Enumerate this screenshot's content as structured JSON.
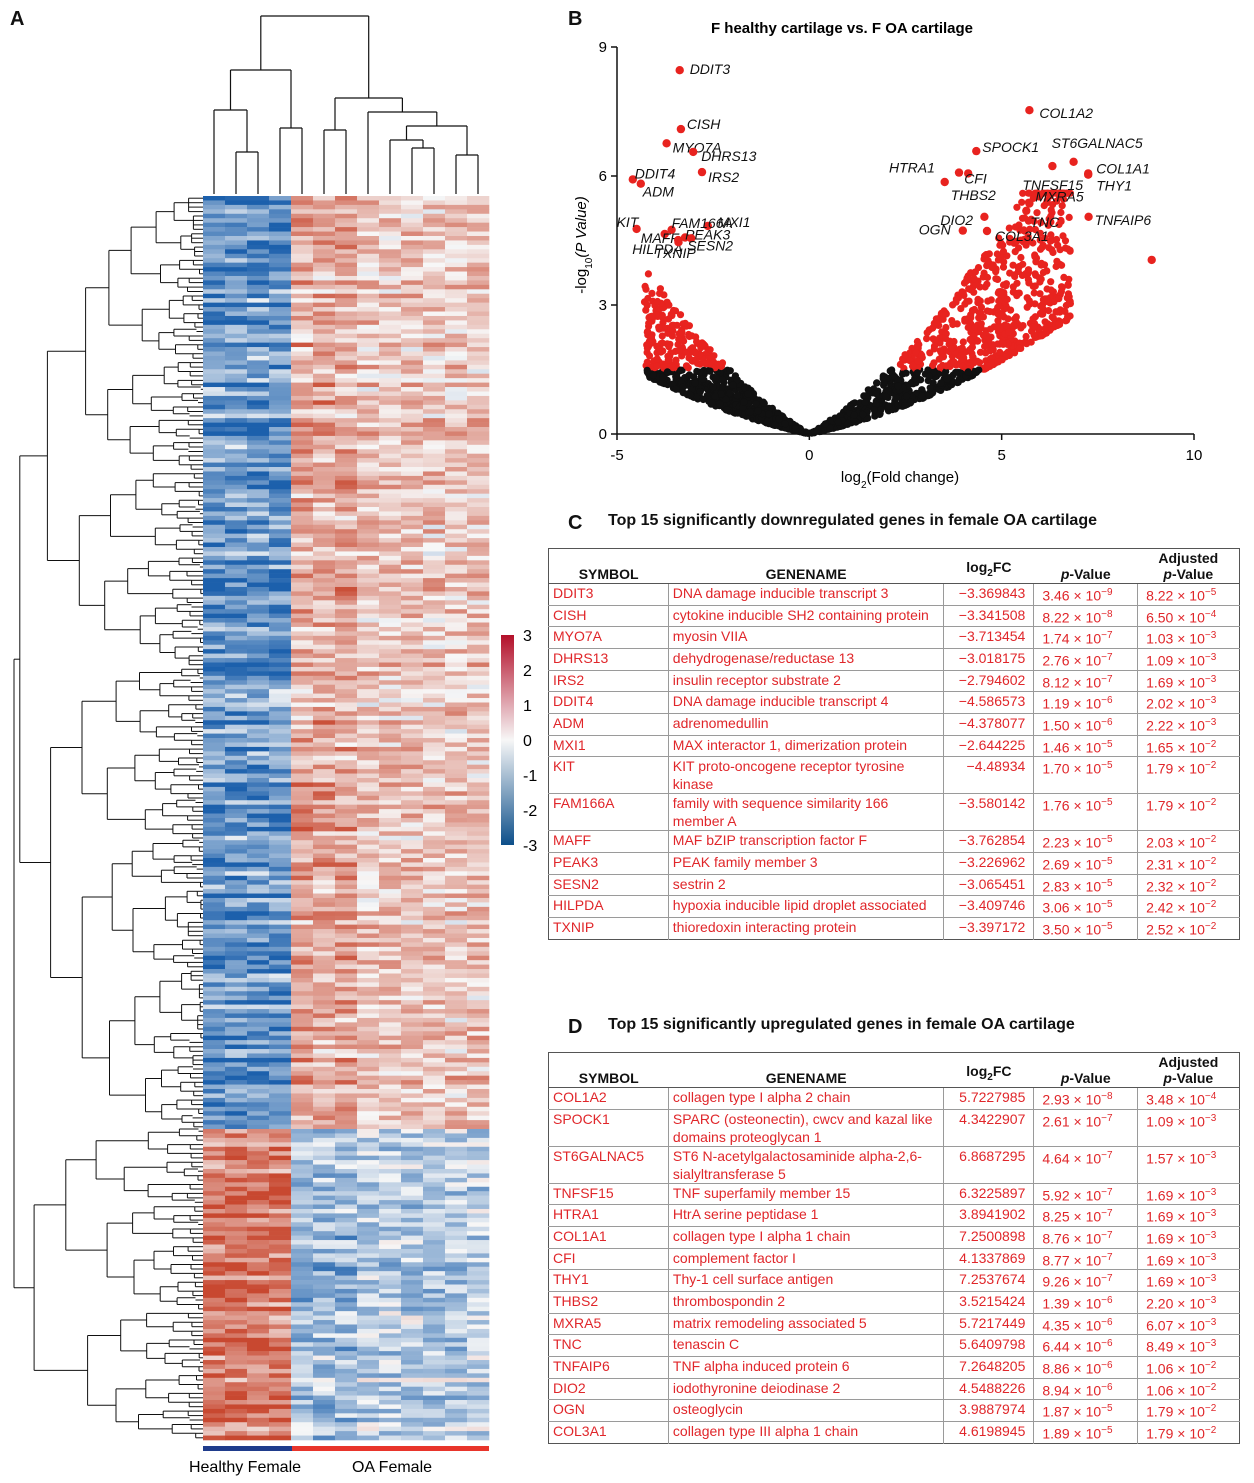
{
  "panels": {
    "a": "A",
    "b": "B",
    "c": "C",
    "d": "D"
  },
  "heatmap": {
    "group_labels": [
      "Healthy Female",
      "OA Female"
    ],
    "group_colors": [
      "#1f3c8c",
      "#e8352b"
    ],
    "colorbar_ticks": [
      "3",
      "2",
      "1",
      "0",
      "-1",
      "-2",
      "-3"
    ],
    "colorbar_colors": [
      "#b3102a",
      "#f7f7f7",
      "#0d4f8a"
    ]
  },
  "chart_data": {
    "type": "scatter",
    "title": "F healthy cartilage vs. F OA cartilage",
    "xlabel_main": "log",
    "xlabel_sub": "2",
    "xlabel_tail": "(Fold change)",
    "ylabel_main": "-log",
    "ylabel_sub": "10",
    "ylabel_tail": "(P Value)",
    "xlim": [
      -5,
      10
    ],
    "ylim": [
      0,
      9
    ],
    "xticks": [
      "-5",
      "0",
      "5",
      "10"
    ],
    "yticks": [
      "0",
      "3",
      "6",
      "9"
    ],
    "significance_threshold": 1.5,
    "colors": {
      "significant": "#e8231f",
      "not_significant": "#111111"
    },
    "labeled_points": [
      {
        "gene": "DDIT3",
        "x": -3.37,
        "y": 8.46
      },
      {
        "gene": "CISH",
        "x": -3.34,
        "y": 7.09
      },
      {
        "gene": "MYO7A",
        "x": -3.71,
        "y": 6.76
      },
      {
        "gene": "DHRS13",
        "x": -3.02,
        "y": 6.56
      },
      {
        "gene": "IRS2",
        "x": -2.79,
        "y": 6.09
      },
      {
        "gene": "DDIT4",
        "x": -4.59,
        "y": 5.92
      },
      {
        "gene": "ADM",
        "x": -4.38,
        "y": 5.82
      },
      {
        "gene": "MXI1",
        "x": -2.64,
        "y": 4.84
      },
      {
        "gene": "KIT",
        "x": -4.49,
        "y": 4.77
      },
      {
        "gene": "FAM166A",
        "x": -3.58,
        "y": 4.75
      },
      {
        "gene": "MAFF",
        "x": -3.76,
        "y": 4.65
      },
      {
        "gene": "PEAK3",
        "x": -3.23,
        "y": 4.57
      },
      {
        "gene": "SESN2",
        "x": -3.07,
        "y": 4.55
      },
      {
        "gene": "HILPDA",
        "x": -3.41,
        "y": 4.51
      },
      {
        "gene": "TXNIP",
        "x": -3.4,
        "y": 4.46
      },
      {
        "gene": "COL1A2",
        "x": 5.72,
        "y": 7.53
      },
      {
        "gene": "SPOCK1",
        "x": 4.34,
        "y": 6.58
      },
      {
        "gene": "ST6GALNAC5",
        "x": 6.87,
        "y": 6.33
      },
      {
        "gene": "TNFSF15",
        "x": 6.32,
        "y": 6.23
      },
      {
        "gene": "HTRA1",
        "x": 3.89,
        "y": 6.08
      },
      {
        "gene": "COL1A1",
        "x": 7.25,
        "y": 6.06
      },
      {
        "gene": "CFI",
        "x": 4.13,
        "y": 6.06
      },
      {
        "gene": "THY1",
        "x": 7.25,
        "y": 6.03
      },
      {
        "gene": "THBS2",
        "x": 3.52,
        "y": 5.86
      },
      {
        "gene": "MXRA5",
        "x": 5.72,
        "y": 5.36
      },
      {
        "gene": "TNC",
        "x": 5.64,
        "y": 5.19
      },
      {
        "gene": "TNFAIP6",
        "x": 7.26,
        "y": 5.05
      },
      {
        "gene": "DIO2",
        "x": 4.55,
        "y": 5.05
      },
      {
        "gene": "OGN",
        "x": 3.99,
        "y": 4.73
      },
      {
        "gene": "COL3A1",
        "x": 4.62,
        "y": 4.72
      },
      {
        "gene": "",
        "x": 8.9,
        "y": 4.05
      }
    ]
  },
  "down_table": {
    "letter": "C",
    "title": "Top 15 significantly downregulated genes in female OA cartilage",
    "headers": {
      "symbol": "SYMBOL",
      "genename": "GENENAME",
      "log": "log",
      "log_sub": "2",
      "log_tail": "FC",
      "p": "p",
      "p_tail": "-Value",
      "adj_line1": "Adjusted",
      "adj_p": "p",
      "adj_tail": "-Value"
    },
    "rows": [
      {
        "symbol": "DDIT3",
        "genename": "DNA damage inducible transcript 3",
        "logfc": "−3.369843",
        "pval": "3.46 × 10",
        "pexp": "−9",
        "adj": "8.22 × 10",
        "adjexp": "−5"
      },
      {
        "symbol": "CISH",
        "genename": "cytokine inducible SH2 containing protein",
        "logfc": "−3.341508",
        "pval": "8.22 × 10",
        "pexp": "−8",
        "adj": "6.50 × 10",
        "adjexp": "−4"
      },
      {
        "symbol": "MYO7A",
        "genename": "myosin VIIA",
        "logfc": "−3.713454",
        "pval": "1.74 × 10",
        "pexp": "−7",
        "adj": "1.03 × 10",
        "adjexp": "−3"
      },
      {
        "symbol": "DHRS13",
        "genename": "dehydrogenase/reductase 13",
        "logfc": "−3.018175",
        "pval": "2.76 × 10",
        "pexp": "−7",
        "adj": "1.09 × 10",
        "adjexp": "−3"
      },
      {
        "symbol": "IRS2",
        "genename": "insulin receptor substrate 2",
        "logfc": "−2.794602",
        "pval": "8.12 × 10",
        "pexp": "−7",
        "adj": "1.69 × 10",
        "adjexp": "−3"
      },
      {
        "symbol": "DDIT4",
        "genename": "DNA damage inducible transcript 4",
        "logfc": "−4.586573",
        "pval": "1.19 × 10",
        "pexp": "−6",
        "adj": "2.02 × 10",
        "adjexp": "−3"
      },
      {
        "symbol": "ADM",
        "genename": "adrenomedullin",
        "logfc": "−4.378077",
        "pval": "1.50 × 10",
        "pexp": "−6",
        "adj": "2.22 × 10",
        "adjexp": "−3"
      },
      {
        "symbol": "MXI1",
        "genename": "MAX interactor 1, dimerization protein",
        "logfc": "−2.644225",
        "pval": "1.46 × 10",
        "pexp": "−5",
        "adj": "1.65 × 10",
        "adjexp": "−2"
      },
      {
        "symbol": "KIT",
        "genename": "KIT proto-oncogene receptor tyrosine kinase",
        "logfc": "−4.48934",
        "pval": "1.70 × 10",
        "pexp": "−5",
        "adj": "1.79 × 10",
        "adjexp": "−2"
      },
      {
        "symbol": "FAM166A",
        "genename": "family with sequence similarity 166 member A",
        "logfc": "−3.580142",
        "pval": "1.76 × 10",
        "pexp": "−5",
        "adj": "1.79 × 10",
        "adjexp": "−2"
      },
      {
        "symbol": "MAFF",
        "genename": "MAF bZIP transcription factor F",
        "logfc": "−3.762854",
        "pval": "2.23 × 10",
        "pexp": "−5",
        "adj": "2.03 × 10",
        "adjexp": "−2"
      },
      {
        "symbol": "PEAK3",
        "genename": "PEAK family member 3",
        "logfc": "−3.226962",
        "pval": "2.69 × 10",
        "pexp": "−5",
        "adj": "2.31 × 10",
        "adjexp": "−2"
      },
      {
        "symbol": "SESN2",
        "genename": "sestrin 2",
        "logfc": "−3.065451",
        "pval": "2.83 × 10",
        "pexp": "−5",
        "adj": "2.32 × 10",
        "adjexp": "−2"
      },
      {
        "symbol": "HILPDA",
        "genename": "hypoxia inducible lipid droplet associated",
        "logfc": "−3.409746",
        "pval": "3.06 × 10",
        "pexp": "−5",
        "adj": "2.42 × 10",
        "adjexp": "−2"
      },
      {
        "symbol": "TXNIP",
        "genename": "thioredoxin interacting protein",
        "logfc": "−3.397172",
        "pval": "3.50 × 10",
        "pexp": "−5",
        "adj": "2.52 × 10",
        "adjexp": "−2"
      }
    ]
  },
  "up_table": {
    "letter": "D",
    "title": "Top 15 significantly upregulated genes in female OA cartilage",
    "headers": {
      "symbol": "SYMBOL",
      "genename": "GENENAME",
      "log": "log",
      "log_sub": "2",
      "log_tail": "FC",
      "p": "p",
      "p_tail": "-Value",
      "adj_line1": "Adjusted",
      "adj_p": "p",
      "adj_tail": "-Value"
    },
    "rows": [
      {
        "symbol": "COL1A2",
        "genename": "collagen type I alpha 2 chain",
        "logfc": "5.7227985",
        "pval": "2.93 × 10",
        "pexp": "−8",
        "adj": "3.48 × 10",
        "adjexp": "−4"
      },
      {
        "symbol": "SPOCK1",
        "genename": "SPARC (osteonectin), cwcv and kazal like domains proteoglycan 1",
        "logfc": "4.3422907",
        "pval": "2.61 × 10",
        "pexp": "−7",
        "adj": "1.09 × 10",
        "adjexp": "−3"
      },
      {
        "symbol": "ST6GALNAC5",
        "genename": "ST6 N-acetylgalactosaminide alpha-2,6-sialyltransferase 5",
        "logfc": "6.8687295",
        "pval": "4.64 × 10",
        "pexp": "−7",
        "adj": "1.57 × 10",
        "adjexp": "−3"
      },
      {
        "symbol": "TNFSF15",
        "genename": "TNF superfamily member 15",
        "logfc": "6.3225897",
        "pval": "5.92 × 10",
        "pexp": "−7",
        "adj": "1.69 × 10",
        "adjexp": "−3"
      },
      {
        "symbol": "HTRA1",
        "genename": "HtrA serine peptidase 1",
        "logfc": "3.8941902",
        "pval": "8.25 × 10",
        "pexp": "−7",
        "adj": "1.69 × 10",
        "adjexp": "−3"
      },
      {
        "symbol": "COL1A1",
        "genename": "collagen type I alpha 1 chain",
        "logfc": "7.2500898",
        "pval": "8.76 × 10",
        "pexp": "−7",
        "adj": "1.69 × 10",
        "adjexp": "−3"
      },
      {
        "symbol": "CFI",
        "genename": "complement factor I",
        "logfc": "4.1337869",
        "pval": "8.77 × 10",
        "pexp": "−7",
        "adj": "1.69 × 10",
        "adjexp": "−3"
      },
      {
        "symbol": "THY1",
        "genename": "Thy-1 cell surface antigen",
        "logfc": "7.2537674",
        "pval": "9.26 × 10",
        "pexp": "−7",
        "adj": "1.69 × 10",
        "adjexp": "−3"
      },
      {
        "symbol": "THBS2",
        "genename": "thrombospondin 2",
        "logfc": "3.5215424",
        "pval": "1.39 × 10",
        "pexp": "−6",
        "adj": "2.20 × 10",
        "adjexp": "−3"
      },
      {
        "symbol": "MXRA5",
        "genename": "matrix remodeling associated 5",
        "logfc": "5.7217449",
        "pval": "4.35 × 10",
        "pexp": "−6",
        "adj": "6.07 × 10",
        "adjexp": "−3"
      },
      {
        "symbol": "TNC",
        "genename": "tenascin C",
        "logfc": "5.6409798",
        "pval": "6.44 × 10",
        "pexp": "−6",
        "adj": "8.49 × 10",
        "adjexp": "−3"
      },
      {
        "symbol": "TNFAIP6",
        "genename": "TNF alpha induced protein 6",
        "logfc": "7.2648205",
        "pval": "8.86 × 10",
        "pexp": "−6",
        "adj": "1.06 × 10",
        "adjexp": "−2"
      },
      {
        "symbol": "DIO2",
        "genename": "iodothyronine deiodinase 2",
        "logfc": "4.5488226",
        "pval": "8.94 × 10",
        "pexp": "−6",
        "adj": "1.06 × 10",
        "adjexp": "−2"
      },
      {
        "symbol": "OGN",
        "genename": "osteoglycin",
        "logfc": "3.9887974",
        "pval": "1.87 × 10",
        "pexp": "−5",
        "adj": "1.79 × 10",
        "adjexp": "−2"
      },
      {
        "symbol": "COL3A1",
        "genename": "collagen type III alpha 1 chain",
        "logfc": "4.6198945",
        "pval": "1.89 × 10",
        "pexp": "−5",
        "adj": "1.79 × 10",
        "adjexp": "−2"
      }
    ]
  }
}
